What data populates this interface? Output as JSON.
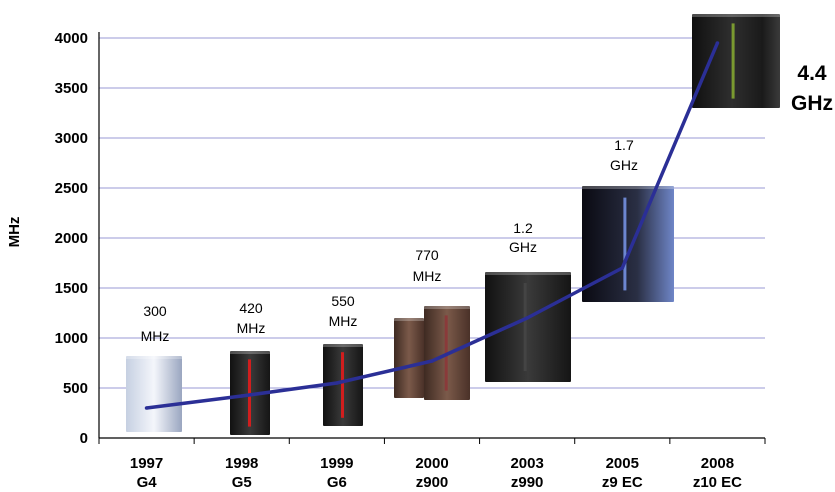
{
  "chart_data": {
    "type": "line",
    "ylabel": "MHz",
    "ylim": [
      0,
      4000
    ],
    "yticks": [
      "0",
      "500",
      "1000",
      "1500",
      "2000",
      "2500",
      "3000",
      "3500",
      "4000"
    ],
    "categories": [
      {
        "year": "1997",
        "model": "G4"
      },
      {
        "year": "1998",
        "model": "G5"
      },
      {
        "year": "1999",
        "model": "G6"
      },
      {
        "year": "2000",
        "model": "z900"
      },
      {
        "year": "2003",
        "model": "z990"
      },
      {
        "year": "2005",
        "model": "z9 EC"
      },
      {
        "year": "2008",
        "model": "z10 EC"
      }
    ],
    "values": [
      300,
      420,
      550,
      770,
      1200,
      1700,
      4400
    ],
    "annotations": [
      {
        "value": "300",
        "unit": "MHz"
      },
      {
        "value": "420",
        "unit": "MHz"
      },
      {
        "value": "550",
        "unit": "MHz"
      },
      {
        "value": "770",
        "unit": "MHz"
      },
      {
        "value": "1.2",
        "unit": "GHz"
      },
      {
        "value": "1.7",
        "unit": "GHz"
      },
      {
        "value": "4.4",
        "unit": "GHz"
      }
    ],
    "line_color": "#2b2f96",
    "grid_color": "#9a9ad6",
    "grid": true
  }
}
